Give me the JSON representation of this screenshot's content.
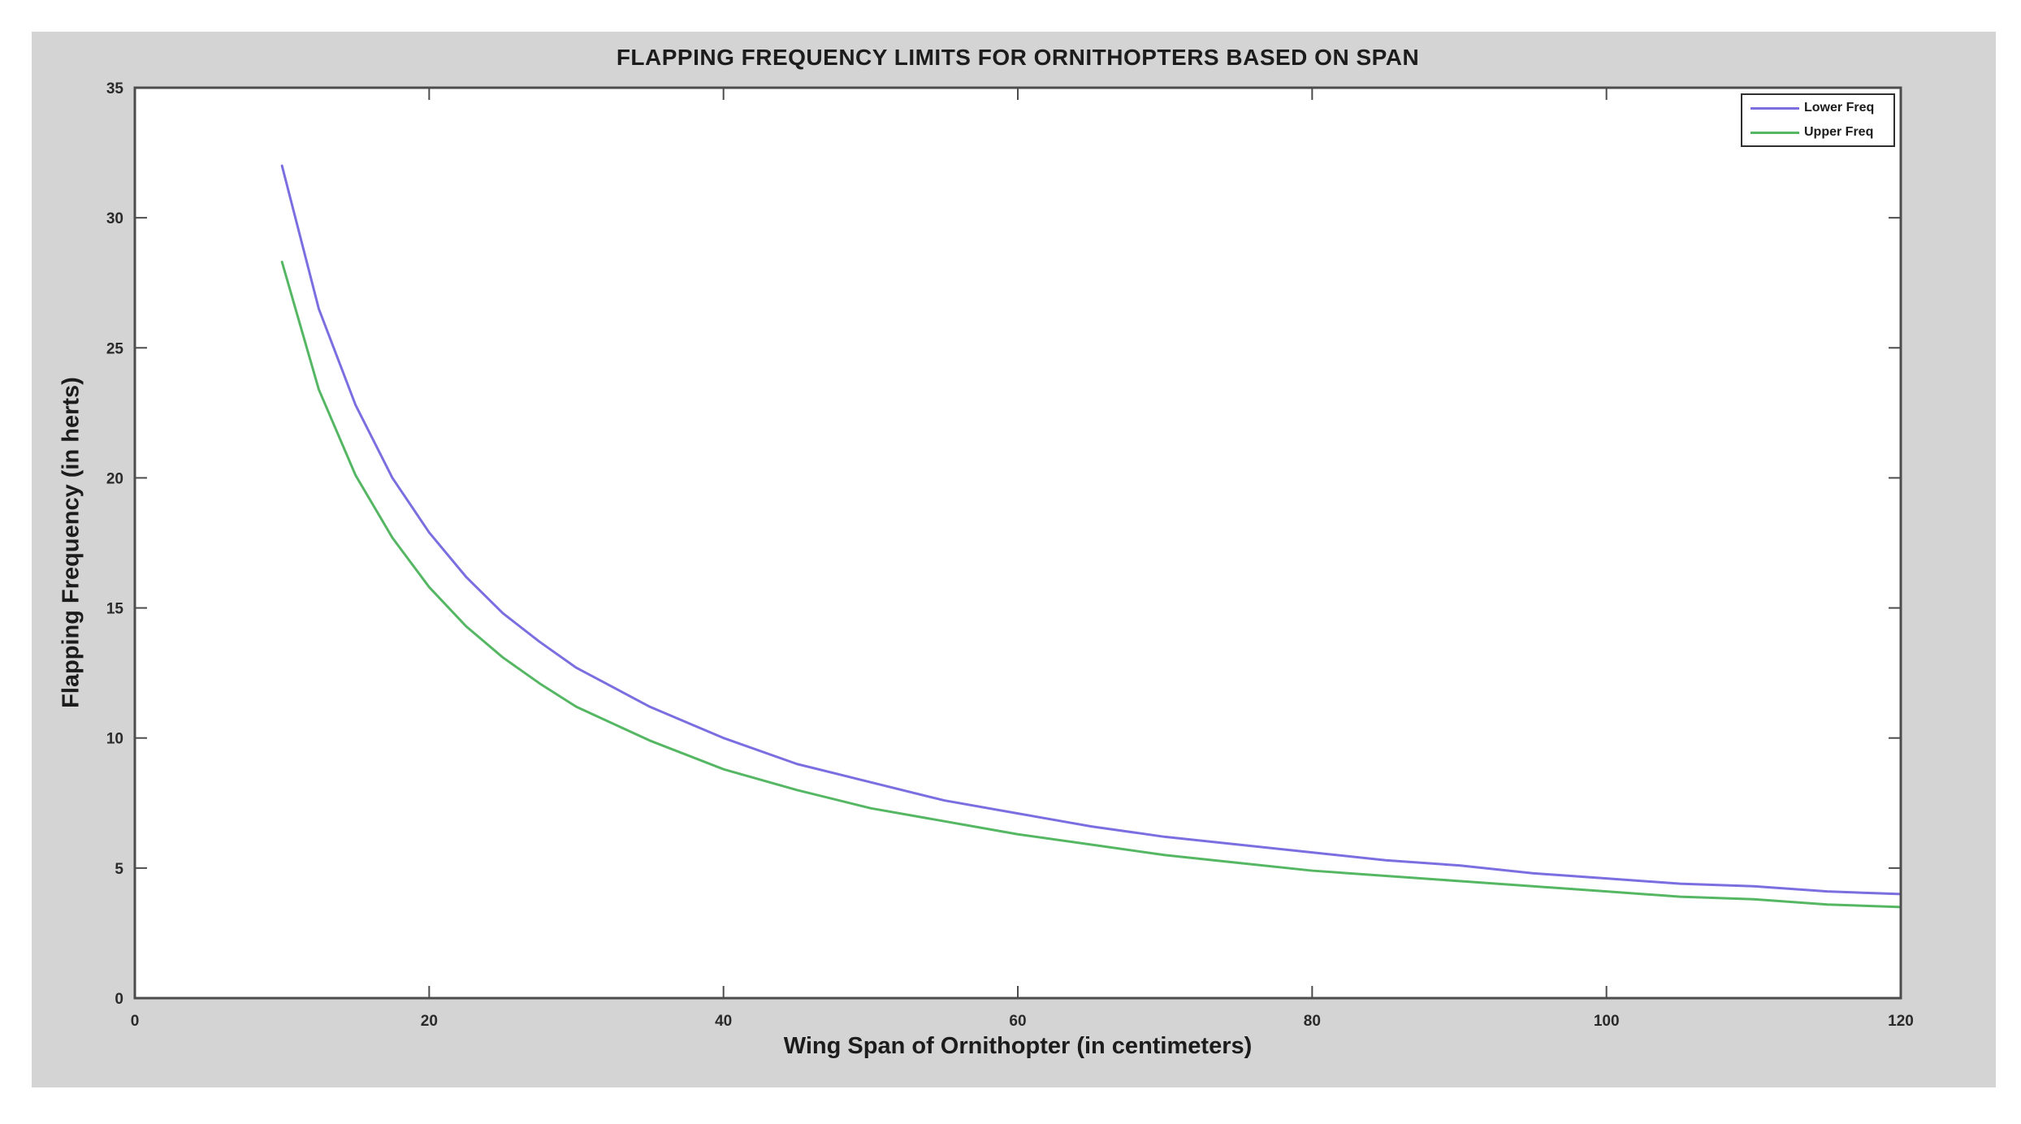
{
  "figure": {
    "title": "FLAPPING FREQUENCY LIMITS FOR ORNITHOPTERS BASED ON SPAN",
    "xlabel": "Wing Span of Ornithopter (in centimeters)",
    "ylabel": "Flapping Frequency (in herts)",
    "background_color": "#d4d4d4",
    "plot_background": "#ffffff",
    "axis_color": "#4c4c4c",
    "tick_label_color": "#2a2a2a"
  },
  "legend": {
    "position": "top-right",
    "entries": [
      {
        "label": "Lower Freq",
        "color": "#7a6ee0"
      },
      {
        "label": "Upper Freq",
        "color": "#55b763"
      }
    ]
  },
  "chart_data": {
    "type": "line",
    "title": "FLAPPING FREQUENCY LIMITS FOR ORNITHOPTERS BASED ON SPAN",
    "xlabel": "Wing Span of Ornithopter (in centimeters)",
    "ylabel": "Flapping Frequency (in herts)",
    "xlim": [
      0,
      120
    ],
    "ylim": [
      0,
      35
    ],
    "x_ticks": [
      0,
      20,
      40,
      60,
      80,
      100,
      120
    ],
    "y_ticks": [
      0,
      5,
      10,
      15,
      20,
      25,
      30,
      35
    ],
    "grid": false,
    "legend_position": "top-right",
    "x": [
      10,
      12.5,
      15,
      17.5,
      20,
      22.5,
      25,
      27.5,
      30,
      35,
      40,
      45,
      50,
      55,
      60,
      65,
      70,
      75,
      80,
      85,
      90,
      95,
      100,
      105,
      110,
      115,
      120
    ],
    "series": [
      {
        "name": "Lower Freq",
        "color": "#7a6ee0",
        "values": [
          32.0,
          26.5,
          22.8,
          20.0,
          17.9,
          16.2,
          14.8,
          13.7,
          12.7,
          11.2,
          10.0,
          9.0,
          8.3,
          7.6,
          7.1,
          6.6,
          6.2,
          5.9,
          5.6,
          5.3,
          5.1,
          4.8,
          4.6,
          4.4,
          4.3,
          4.1,
          4.0
        ]
      },
      {
        "name": "Upper Freq",
        "color": "#55b763",
        "values": [
          28.3,
          23.4,
          20.1,
          17.7,
          15.8,
          14.3,
          13.1,
          12.1,
          11.2,
          9.9,
          8.8,
          8.0,
          7.3,
          6.8,
          6.3,
          5.9,
          5.5,
          5.2,
          4.9,
          4.7,
          4.5,
          4.3,
          4.1,
          3.9,
          3.8,
          3.6,
          3.5
        ]
      }
    ]
  }
}
